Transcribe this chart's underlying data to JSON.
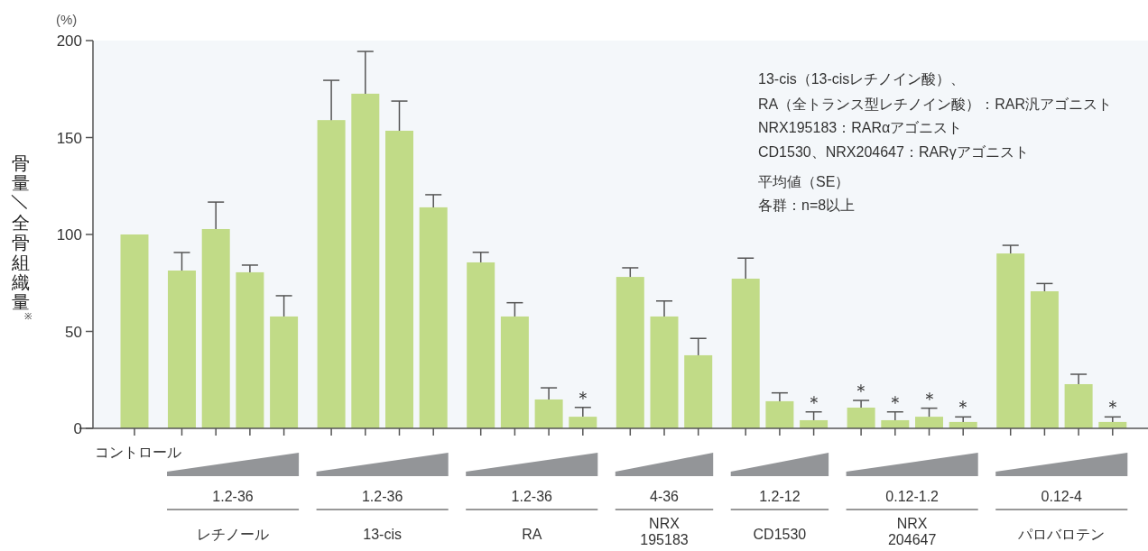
{
  "chart_data": {
    "type": "bar",
    "ylabel": "骨量／全骨組織量※",
    "categories": [
      "コントロール",
      null,
      null,
      null,
      null,
      null,
      null,
      null,
      null,
      null,
      null,
      null,
      null,
      null,
      null,
      null,
      null,
      null,
      null,
      null,
      null,
      null,
      null,
      null,
      null,
      null,
      null
    ],
    "values": [
      100,
      81.4,
      102.8,
      80.5,
      57.7,
      159,
      172.6,
      153.5,
      114,
      85.6,
      57.7,
      14.9,
      6,
      78.1,
      57.7,
      37.7,
      77.2,
      14,
      4.2,
      10.7,
      4.2,
      6,
      3.3,
      90.2,
      70.7,
      22.8,
      3.3
    ],
    "errors": [
      null,
      [
        81.4,
        90.7
      ],
      [
        102.8,
        116.7
      ],
      [
        80.5,
        84.2
      ],
      [
        57.7,
        68.4
      ],
      [
        159,
        179.5
      ],
      [
        172.6,
        194.4
      ],
      [
        153.5,
        168.8
      ],
      [
        114,
        120.5
      ],
      [
        85.6,
        90.8
      ],
      [
        57.7,
        64.8
      ],
      [
        14.9,
        20.9
      ],
      [
        6,
        10.8
      ],
      [
        78.1,
        82.8
      ],
      [
        57.7,
        65.7
      ],
      [
        37.7,
        46.4
      ],
      [
        77.2,
        87.8
      ],
      [
        14,
        18.3
      ],
      [
        4.2,
        8.5
      ],
      [
        10.7,
        14.4
      ],
      [
        4.2,
        8.5
      ],
      [
        6,
        10.4
      ],
      [
        3.3,
        5.9
      ],
      [
        90.2,
        94.4
      ],
      [
        70.7,
        74.7
      ],
      [
        22.8,
        27.9
      ],
      [
        3.3,
        5.9
      ]
    ],
    "value_labels": [
      null,
      null,
      null,
      null,
      null,
      null,
      null,
      null,
      null,
      null,
      null,
      null,
      "＊",
      null,
      null,
      null,
      null,
      null,
      "＊",
      "＊",
      "＊",
      "＊",
      "＊",
      null,
      null,
      null,
      "＊"
    ],
    "color": "#c1db87",
    "ylim": [
      0,
      200
    ],
    "yticks": [
      0,
      50,
      100,
      150,
      200
    ],
    "annotations": [
      "(%)",
      "13-cis（13-cisレチノイン酸）、",
      "RA（全トランス型レチノイン酸）：RAR汎アゴニスト",
      "NRX195183：RARαアゴニスト",
      "CD1530、NRX204647：RARγアゴニスト",
      "平均値（SE）",
      "各群：n=8以上",
      "1.2-36",
      "1.2-36",
      "1.2-36",
      "4-36",
      "1.2-12",
      "0.12-1.2",
      "0.12-4",
      "レチノール",
      "13-cis",
      "RA",
      "NRX\n195183",
      "CD1530",
      "NRX\n204647",
      "パロバロテン"
    ]
  }
}
